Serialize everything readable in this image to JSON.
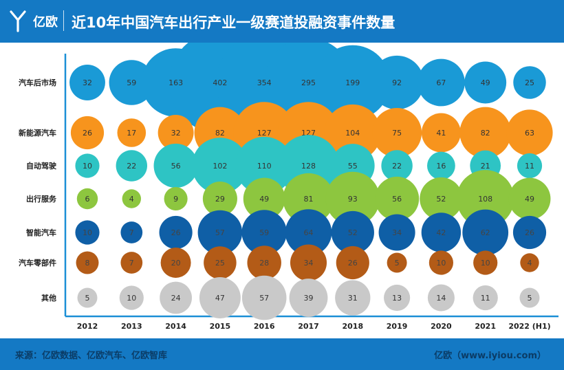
{
  "header": {
    "logo_text": "亿欧",
    "title": "近10年中国汽车出行产业一级赛道投融资事件数量"
  },
  "footer": {
    "source": "来源：亿欧数据、亿欧汽车、亿欧智库",
    "site": "亿欧（www.iyiou.com）"
  },
  "colors": {
    "header_bg": "#1479c4",
    "axis": "#1a8fd6"
  },
  "chart_data": {
    "type": "bubble",
    "title": "近10年中国汽车出行产业一级赛道投融资事件数量",
    "xlabel": "",
    "ylabel": "",
    "categories": [
      "2012",
      "2013",
      "2014",
      "2015",
      "2016",
      "2017",
      "2018",
      "2019",
      "2020",
      "2021",
      "2022 (H1)"
    ],
    "series": [
      {
        "name": "汽车后市场",
        "color": "#1a9ad6",
        "text_color": "#333333",
        "values": [
          32,
          59,
          163,
          402,
          354,
          295,
          199,
          92,
          67,
          49,
          25
        ]
      },
      {
        "name": "新能源汽车",
        "color": "#f7941d",
        "text_color": "#333333",
        "values": [
          26,
          17,
          32,
          82,
          127,
          127,
          104,
          75,
          41,
          82,
          63
        ]
      },
      {
        "name": "自动驾驶",
        "color": "#2ec4c4",
        "text_color": "#333333",
        "values": [
          10,
          22,
          56,
          102,
          110,
          128,
          55,
          22,
          16,
          21,
          11
        ]
      },
      {
        "name": "出行服务",
        "color": "#8dc63f",
        "text_color": "#333333",
        "values": [
          6,
          4,
          9,
          29,
          49,
          81,
          93,
          56,
          52,
          108,
          49
        ]
      },
      {
        "name": "智能汽车",
        "color": "#0f5fa6",
        "text_color": "#444444",
        "values": [
          10,
          7,
          26,
          57,
          59,
          64,
          52,
          34,
          42,
          62,
          26
        ]
      },
      {
        "name": "汽车零部件",
        "color": "#b35b17",
        "text_color": "#444444",
        "values": [
          8,
          7,
          20,
          25,
          28,
          34,
          26,
          5,
          10,
          10,
          4
        ]
      },
      {
        "name": "其他",
        "color": "#c9c9c9",
        "text_color": "#333333",
        "values": [
          5,
          10,
          24,
          47,
          57,
          39,
          31,
          13,
          14,
          11,
          5
        ]
      }
    ]
  }
}
